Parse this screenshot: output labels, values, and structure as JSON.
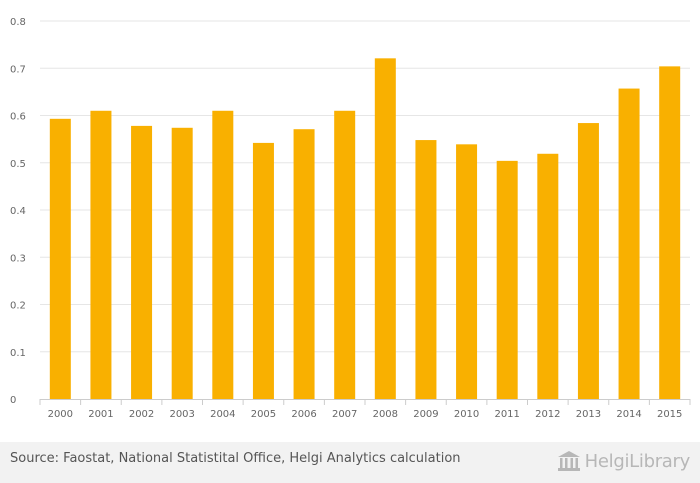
{
  "chart_data": {
    "type": "bar",
    "categories": [
      "2000",
      "2001",
      "2002",
      "2003",
      "2004",
      "2005",
      "2006",
      "2007",
      "2008",
      "2009",
      "2010",
      "2011",
      "2012",
      "2013",
      "2014",
      "2015"
    ],
    "values": [
      0.593,
      0.61,
      0.578,
      0.574,
      0.61,
      0.542,
      0.571,
      0.61,
      0.721,
      0.548,
      0.539,
      0.504,
      0.519,
      0.584,
      0.657,
      0.704
    ],
    "ylim": [
      0,
      0.8
    ],
    "yticks": [
      "0",
      "0.1",
      "0.2",
      "0.3",
      "0.4",
      "0.5",
      "0.6",
      "0.7",
      "0.8"
    ],
    "grid": true,
    "bar_color": "#f9b000",
    "title": "",
    "xlabel": "",
    "ylabel": ""
  },
  "footer": {
    "source": "Source: Faostat, National Statistital Office, Helgi Analytics calculation",
    "logo_text": "HelgiLibrary",
    "logo_icon": "library-building-icon"
  }
}
